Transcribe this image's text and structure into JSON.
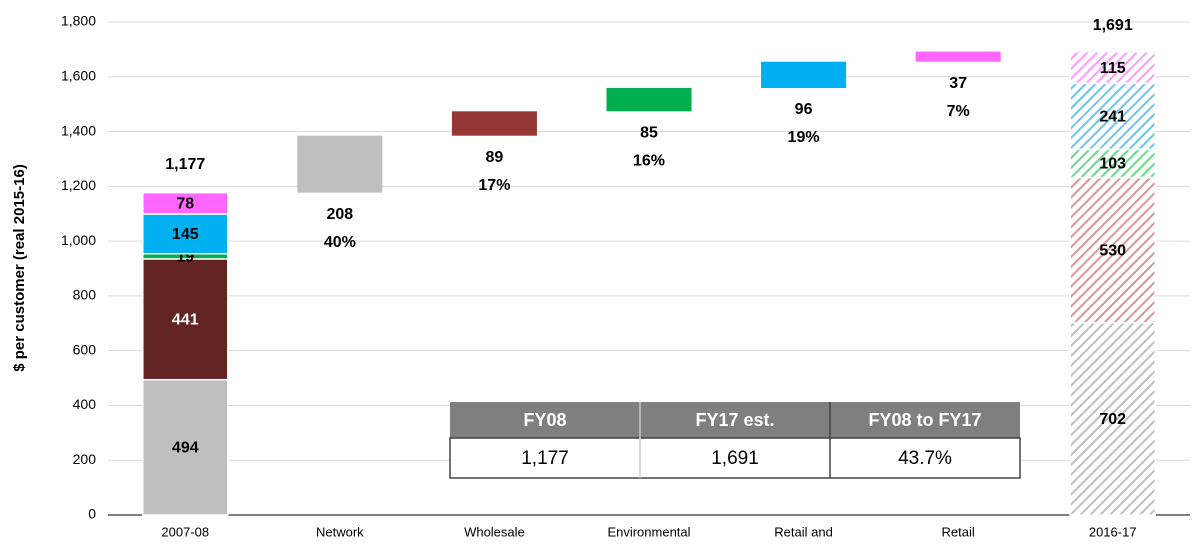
{
  "chart_data": {
    "type": "waterfall",
    "ylabel": "$ per customer (real 2015-16)",
    "categories": [
      "2007-08",
      "Network",
      "Wholesale",
      "Environmental",
      "Retail and",
      "Retail",
      "2016-17"
    ],
    "ylim": [
      0,
      1800
    ],
    "yticks": [
      0,
      200,
      400,
      600,
      800,
      {
        "value": 1000,
        "label": "1,000"
      },
      {
        "value": 1200,
        "label": "1,200"
      },
      {
        "value": 1400,
        "label": "1,400"
      },
      {
        "value": 1600,
        "label": "1,600"
      },
      {
        "value": 1800,
        "label": "1,800"
      }
    ],
    "grid": true,
    "start": {
      "values": [
        494,
        441,
        19,
        145,
        78
      ],
      "colors": [
        "#bfbfbf",
        "#632523",
        "#00b050",
        "#00b0f0",
        "#ff66ff"
      ],
      "total_label": "1,177"
    },
    "steps": {
      "values": [
        208,
        89,
        85,
        96,
        37
      ],
      "colors": [
        "#bfbfbf",
        "#953735",
        "#00b050",
        "#00b0f0",
        "#ff66ff"
      ],
      "percent_labels": [
        "40%",
        "17%",
        "16%",
        "19%",
        "7%"
      ]
    },
    "end": {
      "values": [
        702,
        530,
        103,
        241,
        115
      ],
      "colors": [
        "#bfbfbf",
        "#d99694",
        "#66d98a",
        "#66c8f0",
        "#ff99ff"
      ],
      "hatched": true,
      "total_label": "1,691"
    },
    "table": {
      "header": [
        "FY08",
        "FY17 est.",
        "FY08 to FY17"
      ],
      "rows": [
        [
          "1,177",
          "1,691",
          "43.7%"
        ]
      ]
    }
  }
}
